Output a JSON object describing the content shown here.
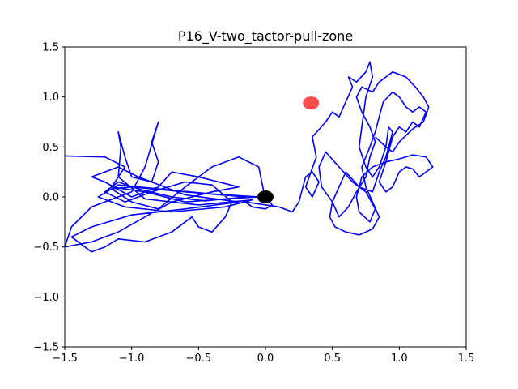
{
  "chart_data": {
    "type": "line",
    "title": "P16_V-two_tactor-pull-zone",
    "xlabel": "",
    "ylabel": "",
    "xlim": [
      -1.5,
      1.5
    ],
    "ylim": [
      -1.5,
      1.5
    ],
    "grid": false,
    "x_ticks": [
      -1.5,
      -1.0,
      -0.5,
      0.0,
      0.5,
      1.0,
      1.5
    ],
    "y_ticks": [
      -1.5,
      -1.0,
      -0.5,
      0.0,
      0.5,
      1.0,
      1.5
    ],
    "x_tick_labels": [
      "−1.5",
      "−1.0",
      "−0.5",
      "0.0",
      "0.5",
      "1.0",
      "1.5"
    ],
    "y_tick_labels": [
      "−1.5",
      "−1.0",
      "−0.5",
      "0.0",
      "0.5",
      "1.0",
      "1.5"
    ],
    "series": [
      {
        "color": "#0000ff",
        "points": [
          [
            -1.5,
            0.41
          ],
          [
            -1.2,
            0.4
          ],
          [
            -1.05,
            0.3
          ],
          [
            -1.15,
            0.1
          ],
          [
            -0.9,
            0.05
          ],
          [
            -0.6,
            -0.05
          ],
          [
            -0.3,
            -0.02
          ],
          [
            -0.05,
            0.0
          ],
          [
            -0.4,
            0.03
          ],
          [
            -0.8,
            0.08
          ],
          [
            -1.1,
            0.12
          ],
          [
            -1.25,
            0.0
          ],
          [
            -1.05,
            -0.1
          ],
          [
            -0.7,
            -0.15
          ],
          [
            -0.3,
            -0.1
          ],
          [
            -0.1,
            -0.03
          ],
          [
            -0.5,
            -0.08
          ],
          [
            -0.9,
            -0.02
          ],
          [
            -1.1,
            0.2
          ],
          [
            -1.08,
            0.5
          ],
          [
            -1.1,
            0.65
          ],
          [
            -1.05,
            0.4
          ],
          [
            -1.0,
            0.2
          ],
          [
            -0.85,
            0.15
          ],
          [
            -0.8,
            0.35
          ],
          [
            -0.85,
            0.55
          ],
          [
            -0.8,
            0.75
          ],
          [
            -0.9,
            0.3
          ],
          [
            -1.0,
            0.05
          ],
          [
            -1.3,
            -0.1
          ],
          [
            -1.45,
            -0.3
          ],
          [
            -1.5,
            -0.5
          ],
          [
            -1.3,
            -0.45
          ],
          [
            -1.1,
            -0.35
          ],
          [
            -0.9,
            -0.2
          ],
          [
            -0.7,
            -0.05
          ],
          [
            -0.4,
            0.05
          ],
          [
            -0.2,
            0.1
          ],
          [
            -0.5,
            0.2
          ],
          [
            -0.7,
            0.25
          ],
          [
            -0.8,
            0.1
          ],
          [
            -1.0,
            0.0
          ],
          [
            -1.2,
            0.15
          ],
          [
            -1.3,
            0.2
          ],
          [
            -1.1,
            0.3
          ],
          [
            -0.95,
            0.2
          ],
          [
            -0.6,
            0.02
          ],
          [
            -0.2,
            -0.05
          ],
          [
            -0.6,
            -0.12
          ],
          [
            -1.0,
            -0.18
          ],
          [
            -1.3,
            -0.3
          ],
          [
            -1.45,
            -0.4
          ],
          [
            -1.3,
            -0.55
          ],
          [
            -1.2,
            -0.5
          ],
          [
            -1.1,
            -0.42
          ],
          [
            -0.9,
            -0.45
          ],
          [
            -0.7,
            -0.35
          ],
          [
            -0.55,
            -0.2
          ],
          [
            -0.5,
            -0.3
          ],
          [
            -0.4,
            -0.35
          ],
          [
            -0.3,
            -0.2
          ],
          [
            -0.25,
            -0.05
          ],
          [
            -0.4,
            0.12
          ],
          [
            -0.6,
            0.15
          ],
          [
            -0.85,
            0.05
          ],
          [
            -1.05,
            -0.05
          ],
          [
            -1.2,
            0.05
          ],
          [
            -1.1,
            0.15
          ],
          [
            -0.95,
            0.08
          ],
          [
            -0.7,
            0.0
          ],
          [
            -0.45,
            -0.04
          ],
          [
            -0.15,
            0.0
          ],
          [
            -0.6,
            0.05
          ],
          [
            -1.0,
            0.1
          ],
          [
            -1.15,
            0.08
          ],
          [
            -1.0,
            -0.05
          ],
          [
            -0.8,
            -0.12
          ],
          [
            -0.6,
            0.1
          ],
          [
            -0.4,
            0.3
          ],
          [
            -0.2,
            0.4
          ],
          [
            -0.05,
            0.3
          ],
          [
            -0.02,
            0.1
          ],
          [
            0.0,
            0.0
          ],
          [
            0.05,
            -0.08
          ],
          [
            0.0,
            -0.12
          ],
          [
            -0.1,
            -0.1
          ],
          [
            -0.15,
            -0.05
          ],
          [
            0.1,
            -0.1
          ],
          [
            0.2,
            -0.15
          ],
          [
            0.25,
            -0.05
          ],
          [
            0.3,
            0.2
          ],
          [
            0.35,
            0.25
          ],
          [
            0.4,
            0.15
          ],
          [
            0.35,
            0.0
          ],
          [
            0.3,
            0.1
          ],
          [
            0.38,
            0.4
          ],
          [
            0.35,
            0.6
          ],
          [
            0.45,
            0.75
          ],
          [
            0.5,
            0.85
          ],
          [
            0.55,
            0.8
          ],
          [
            0.6,
            0.95
          ],
          [
            0.65,
            1.1
          ],
          [
            0.62,
            1.2
          ],
          [
            0.68,
            1.15
          ],
          [
            0.75,
            1.25
          ],
          [
            0.78,
            1.35
          ],
          [
            0.8,
            1.2
          ],
          [
            0.75,
            1.0
          ],
          [
            0.72,
            0.7
          ],
          [
            0.7,
            0.5
          ],
          [
            0.75,
            0.3
          ],
          [
            0.8,
            0.2
          ],
          [
            0.85,
            0.3
          ],
          [
            0.9,
            0.5
          ],
          [
            0.92,
            0.7
          ],
          [
            0.95,
            0.65
          ],
          [
            0.9,
            0.4
          ],
          [
            0.85,
            0.25
          ],
          [
            0.8,
            0.05
          ],
          [
            0.7,
            0.1
          ],
          [
            0.6,
            0.25
          ],
          [
            0.55,
            0.1
          ],
          [
            0.5,
            -0.05
          ],
          [
            0.48,
            -0.2
          ],
          [
            0.52,
            -0.3
          ],
          [
            0.6,
            -0.35
          ],
          [
            0.7,
            -0.38
          ],
          [
            0.8,
            -0.32
          ],
          [
            0.85,
            -0.2
          ],
          [
            0.8,
            -0.05
          ],
          [
            0.75,
            0.1
          ],
          [
            0.72,
            0.3
          ],
          [
            0.78,
            0.5
          ],
          [
            0.82,
            0.65
          ],
          [
            0.85,
            0.8
          ],
          [
            0.88,
            0.95
          ],
          [
            0.95,
            1.05
          ],
          [
            1.0,
            1.0
          ],
          [
            1.05,
            0.9
          ],
          [
            1.1,
            0.85
          ],
          [
            1.15,
            0.9
          ],
          [
            1.2,
            0.85
          ],
          [
            1.15,
            0.7
          ],
          [
            1.1,
            0.75
          ],
          [
            1.05,
            0.65
          ],
          [
            1.0,
            0.7
          ],
          [
            0.95,
            0.6
          ],
          [
            0.9,
            0.35
          ],
          [
            0.85,
            0.15
          ],
          [
            0.9,
            0.05
          ],
          [
            0.95,
            0.1
          ],
          [
            1.0,
            0.25
          ],
          [
            1.05,
            0.3
          ],
          [
            1.1,
            0.28
          ],
          [
            1.15,
            0.2
          ],
          [
            1.2,
            0.25
          ],
          [
            1.25,
            0.3
          ],
          [
            1.2,
            0.4
          ],
          [
            1.1,
            0.42
          ],
          [
            1.0,
            0.38
          ],
          [
            0.9,
            0.35
          ],
          [
            0.8,
            0.3
          ],
          [
            0.72,
            0.2
          ],
          [
            0.68,
            0.0
          ],
          [
            0.7,
            -0.15
          ],
          [
            0.78,
            -0.25
          ],
          [
            0.82,
            -0.12
          ],
          [
            0.75,
            0.05
          ],
          [
            0.65,
            0.15
          ],
          [
            0.55,
            0.3
          ],
          [
            0.45,
            0.45
          ],
          [
            0.4,
            0.3
          ],
          [
            0.42,
            0.1
          ],
          [
            0.5,
            -0.05
          ],
          [
            0.55,
            -0.2
          ],
          [
            0.62,
            -0.1
          ],
          [
            0.68,
            0.05
          ],
          [
            0.75,
            0.2
          ],
          [
            0.78,
            0.4
          ],
          [
            0.82,
            0.55
          ],
          [
            0.78,
            0.7
          ],
          [
            0.72,
            0.85
          ],
          [
            0.68,
            1.0
          ],
          [
            0.72,
            1.1
          ],
          [
            0.8,
            1.05
          ],
          [
            0.85,
            1.15
          ],
          [
            0.9,
            1.2
          ],
          [
            0.95,
            1.25
          ],
          [
            1.05,
            1.2
          ],
          [
            1.12,
            1.1
          ],
          [
            1.18,
            1.0
          ],
          [
            1.22,
            0.9
          ],
          [
            1.18,
            0.75
          ],
          [
            1.1,
            0.68
          ],
          [
            1.0,
            0.55
          ],
          [
            0.95,
            0.45
          ],
          [
            0.9,
            0.5
          ],
          [
            0.82,
            0.6
          ]
        ]
      }
    ],
    "markers": [
      {
        "x": 0.0,
        "y": 0.0,
        "color": "#000000"
      },
      {
        "x": 0.34,
        "y": 0.94,
        "color": "#ff0000",
        "alpha": 0.7
      }
    ]
  }
}
